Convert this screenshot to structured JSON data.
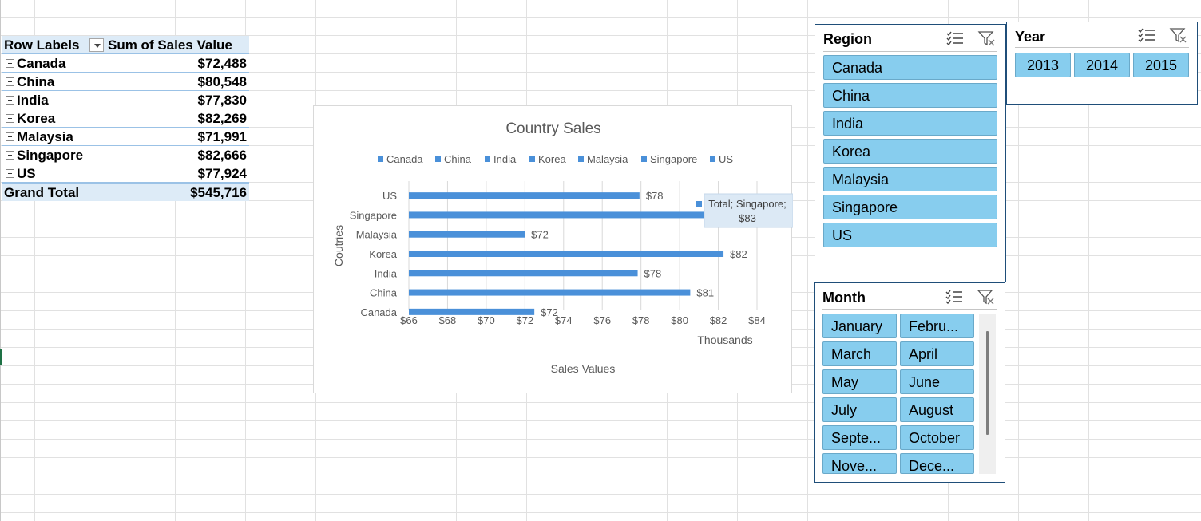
{
  "pivot": {
    "header_label": "Row Labels",
    "header_value": "Sum of Sales Value",
    "rows": [
      {
        "label": "Canada",
        "value": "$72,488"
      },
      {
        "label": "China",
        "value": "$80,548"
      },
      {
        "label": "India",
        "value": "$77,830"
      },
      {
        "label": "Korea",
        "value": "$82,269"
      },
      {
        "label": "Malaysia",
        "value": "$71,991"
      },
      {
        "label": "Singapore",
        "value": "$82,666"
      },
      {
        "label": "US",
        "value": "$77,924"
      }
    ],
    "total_label": "Grand Total",
    "total_value": "$545,716"
  },
  "chart_data": {
    "type": "bar",
    "orientation": "horizontal",
    "title": "Country Sales",
    "xlabel": "Sales Values",
    "ylabel": "Coutries",
    "x_unit_label": "Thousands",
    "legend_position": "top",
    "categories": [
      "US",
      "Singapore",
      "Malaysia",
      "Korea",
      "India",
      "China",
      "Canada"
    ],
    "values": [
      77.924,
      82.666,
      71.991,
      82.269,
      77.83,
      80.548,
      72.488
    ],
    "data_labels": [
      "$78",
      "",
      "$72",
      "$82",
      "$78",
      "$81",
      "$72"
    ],
    "legend_entries": [
      "Canada",
      "China",
      "India",
      "Korea",
      "Malaysia",
      "Singapore",
      "US"
    ],
    "xticks": [
      "$66",
      "$68",
      "$70",
      "$72",
      "$74",
      "$76",
      "$78",
      "$80",
      "$82",
      "$84"
    ],
    "xlim": [
      66,
      84
    ],
    "grid": true,
    "bar_color": "#4a90d9",
    "tooltip": {
      "line1": "Total; Singapore;",
      "line2": "$83"
    }
  },
  "slicers": {
    "region": {
      "title": "Region",
      "items": [
        "Canada",
        "China",
        "India",
        "Korea",
        "Malaysia",
        "Singapore",
        "US"
      ]
    },
    "year": {
      "title": "Year",
      "items": [
        "2013",
        "2014",
        "2015"
      ]
    },
    "month": {
      "title": "Month",
      "items": [
        "January",
        "Febru...",
        "March",
        "April",
        "May",
        "June",
        "July",
        "August",
        "Septe...",
        "October",
        "Nove...",
        "Dece..."
      ]
    },
    "icons": [
      "multi-select-icon",
      "clear-filter-icon"
    ],
    "button_color": "#87cdee",
    "border_color": "#1f4e79"
  }
}
